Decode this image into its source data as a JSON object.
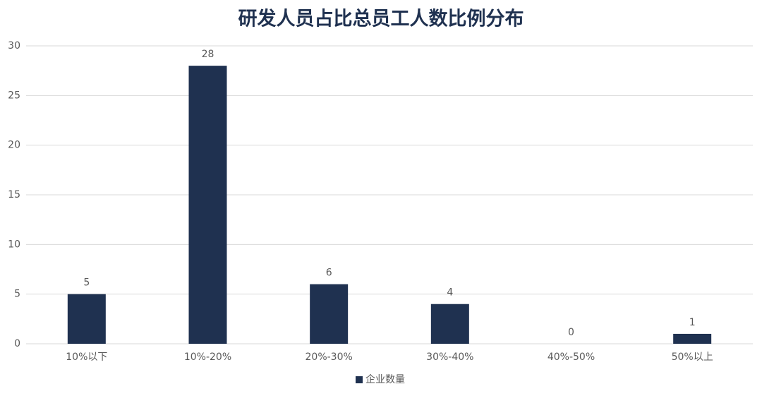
{
  "chart_data": {
    "type": "bar",
    "title": "研发人员占比总员工人数比例分布",
    "categories": [
      "10%以下",
      "10%-20%",
      "20%-30%",
      "30%-40%",
      "40%-50%",
      "50%以上"
    ],
    "series": [
      {
        "name": "企业数量",
        "color": "#1f3150",
        "values": [
          5,
          28,
          6,
          4,
          0,
          1
        ]
      }
    ],
    "ylim": [
      0,
      30
    ],
    "yticks": [
      0,
      5,
      10,
      15,
      20,
      25,
      30
    ],
    "grid": true,
    "legend": "bottom"
  }
}
